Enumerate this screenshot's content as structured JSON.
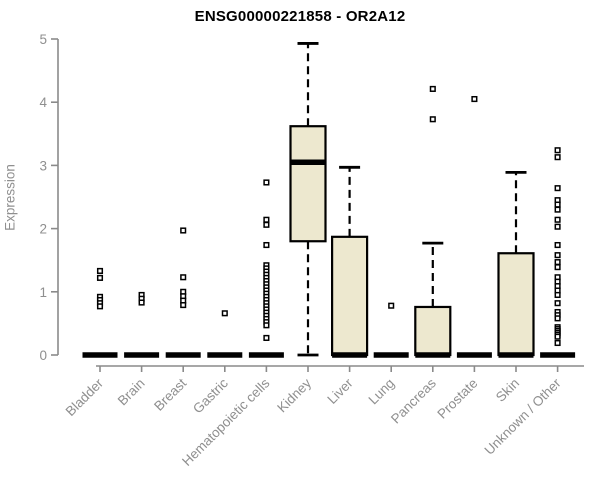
{
  "colors": {
    "background": "#ffffff",
    "title": "#000000",
    "axis": "#8a8a8a",
    "tick_text": "#8f8f8f",
    "box_fill": "#ede8cf",
    "box_stroke": "#000000",
    "outlier": "#000000"
  },
  "chart_data": {
    "type": "boxplot",
    "title": "ENSG00000221858 - OR2A12",
    "xlabel": "",
    "ylabel": "Expression",
    "ylim": [
      0,
      5
    ],
    "yticks": [
      0,
      1,
      2,
      3,
      4,
      5
    ],
    "grid": false,
    "legend": false,
    "categories": [
      "Bladder",
      "Brain",
      "Breast",
      "Gastric",
      "Hematopoietic cells",
      "Kidney",
      "Liver",
      "Lung",
      "Pancreas",
      "Prostate",
      "Skin",
      "Unknown / Other"
    ],
    "series": [
      {
        "name": "Bladder",
        "low": 0,
        "q1": 0,
        "median": 0,
        "q3": 0,
        "high": 0,
        "outliers": [
          1.33,
          1.22,
          0.92,
          0.87,
          0.82,
          0.77
        ]
      },
      {
        "name": "Brain",
        "low": 0,
        "q1": 0,
        "median": 0,
        "q3": 0,
        "high": 0,
        "outliers": [
          0.95,
          0.89,
          0.83
        ]
      },
      {
        "name": "Breast",
        "low": 0,
        "q1": 0,
        "median": 0,
        "q3": 0,
        "high": 0,
        "outliers": [
          1.97,
          1.23,
          1.0,
          0.93,
          0.86,
          0.79
        ]
      },
      {
        "name": "Gastric",
        "low": 0,
        "q1": 0,
        "median": 0,
        "q3": 0,
        "high": 0,
        "outliers": [
          0.66
        ]
      },
      {
        "name": "Hematopoietic cells",
        "low": 0,
        "q1": 0,
        "median": 0,
        "q3": 0,
        "high": 0,
        "outliers": [
          2.73,
          2.14,
          2.06,
          1.74,
          1.42,
          1.37,
          1.32,
          1.27,
          1.22,
          1.17,
          1.12,
          1.07,
          1.02,
          0.97,
          0.92,
          0.87,
          0.82,
          0.77,
          0.72,
          0.67,
          0.62,
          0.57,
          0.52,
          0.47,
          0.27
        ]
      },
      {
        "name": "Kidney",
        "low": 0,
        "q1": 1.8,
        "median": 3.05,
        "q3": 3.62,
        "high": 4.93,
        "outliers": []
      },
      {
        "name": "Liver",
        "low": 0,
        "q1": 0,
        "median": 0,
        "q3": 1.87,
        "high": 2.97,
        "outliers": []
      },
      {
        "name": "Lung",
        "low": 0,
        "q1": 0,
        "median": 0,
        "q3": 0,
        "high": 0,
        "outliers": [
          0.78
        ]
      },
      {
        "name": "Pancreas",
        "low": 0,
        "q1": 0,
        "median": 0,
        "q3": 0.76,
        "high": 1.77,
        "outliers": [
          4.21,
          3.73
        ]
      },
      {
        "name": "Prostate",
        "low": 0,
        "q1": 0,
        "median": 0,
        "q3": 0,
        "high": 0,
        "outliers": [
          4.05
        ]
      },
      {
        "name": "Skin",
        "low": 0,
        "q1": 0,
        "median": 0,
        "q3": 1.61,
        "high": 2.89,
        "outliers": []
      },
      {
        "name": "Unknown / Other",
        "low": 0,
        "q1": 0,
        "median": 0,
        "q3": 0,
        "high": 0,
        "outliers": [
          3.24,
          3.13,
          2.64,
          2.45,
          2.38,
          2.3,
          2.14,
          2.03,
          1.74,
          1.58,
          1.47,
          1.39,
          1.23,
          1.16,
          1.09,
          1.02,
          0.95,
          0.82,
          0.68,
          0.63,
          0.58,
          0.44,
          0.41,
          0.38,
          0.35,
          0.32,
          0.29,
          0.19
        ]
      }
    ]
  }
}
